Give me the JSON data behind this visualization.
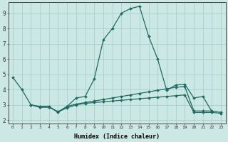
{
  "xlabel": "Humidex (Indice chaleur)",
  "xlim": [
    -0.5,
    23.5
  ],
  "ylim": [
    1.8,
    9.7
  ],
  "yticks": [
    2,
    3,
    4,
    5,
    6,
    7,
    8,
    9
  ],
  "xticks": [
    0,
    1,
    2,
    3,
    4,
    5,
    6,
    7,
    8,
    9,
    10,
    11,
    12,
    13,
    14,
    15,
    16,
    17,
    18,
    19,
    20,
    21,
    22,
    23
  ],
  "bg_color": "#cce8e4",
  "grid_color": "#aacfca",
  "line_color": "#1e6b64",
  "line1_x": [
    0,
    1,
    2,
    3,
    4,
    5,
    6,
    7,
    8,
    9,
    10,
    11,
    12,
    13,
    14,
    15,
    16,
    17,
    18,
    19,
    20,
    21,
    22
  ],
  "line1_y": [
    4.8,
    4.0,
    3.0,
    2.9,
    2.9,
    2.5,
    2.9,
    3.45,
    3.55,
    4.7,
    7.25,
    8.0,
    9.0,
    9.3,
    9.45,
    7.5,
    6.0,
    3.95,
    4.3,
    4.35,
    3.45,
    3.55,
    2.55
  ],
  "line2_x": [
    2,
    3,
    4,
    5,
    6,
    7,
    8,
    9,
    10,
    11,
    12,
    13,
    14,
    15,
    16,
    17,
    18,
    19,
    20,
    21,
    22,
    23
  ],
  "line2_y": [
    3.0,
    2.85,
    2.85,
    2.55,
    2.9,
    3.05,
    3.15,
    3.25,
    3.35,
    3.45,
    3.55,
    3.65,
    3.75,
    3.85,
    3.95,
    4.05,
    4.15,
    4.2,
    2.6,
    2.6,
    2.6,
    2.5
  ],
  "line3_x": [
    2,
    3,
    4,
    5,
    6,
    7,
    8,
    9,
    10,
    11,
    12,
    13,
    14,
    15,
    16,
    17,
    18,
    19,
    20,
    21,
    22,
    23
  ],
  "line3_y": [
    3.0,
    2.85,
    2.85,
    2.55,
    2.8,
    3.0,
    3.1,
    3.15,
    3.2,
    3.25,
    3.3,
    3.35,
    3.4,
    3.45,
    3.5,
    3.55,
    3.6,
    3.65,
    2.5,
    2.5,
    2.5,
    2.45
  ]
}
